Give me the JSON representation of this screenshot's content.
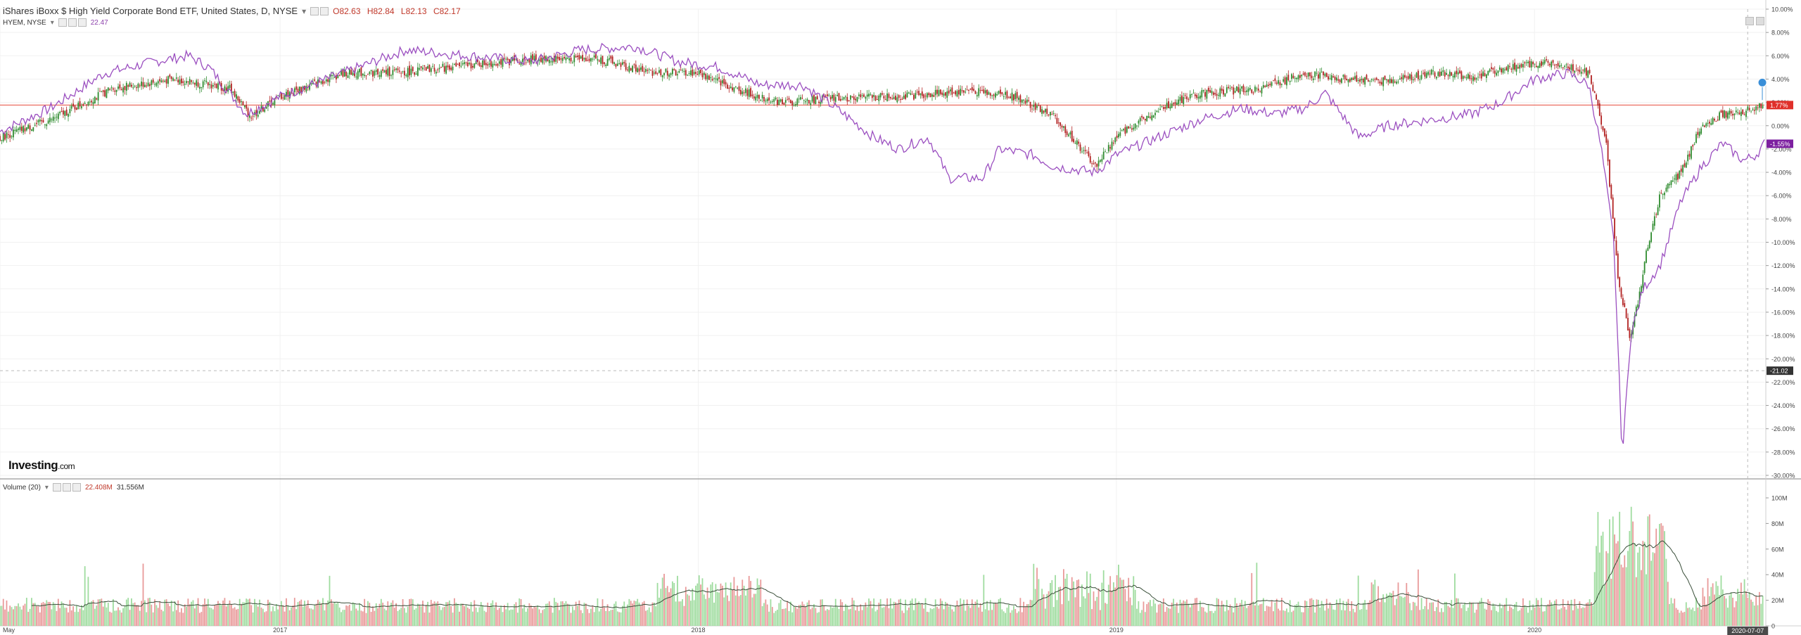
{
  "header": {
    "title": "iShares iBoxx $ High Yield Corporate Bond ETF, United States, D, NYSE",
    "open": "O82.63",
    "high": "H82.84",
    "low": "L82.13",
    "close": "C82.17"
  },
  "compare": {
    "label": "HYEM, NYSE",
    "value": "22.47"
  },
  "volume_legend": {
    "label": "Volume (20)",
    "value1": "22.408M",
    "value2": "31.556M"
  },
  "logo": {
    "main": "Investing",
    "suffix": ".com"
  },
  "colors": {
    "up": "#2e8b2e",
    "down": "#b22222",
    "compare_line": "#9b4fc0",
    "ref_line": "#e74c3c",
    "vol_up": "#9fdc9f",
    "vol_down": "#e99a9a",
    "vol_ma": "#3a4f3a"
  },
  "chart_data": {
    "type": "candlestick-comparison",
    "y_axis": {
      "unit": "%",
      "range": [
        -30,
        10
      ],
      "ticks": [
        "10.00%",
        "8.00%",
        "6.00%",
        "4.00%",
        "2.00%",
        "0.00%",
        "-2.00%",
        "-4.00%",
        "-6.00%",
        "-8.00%",
        "-10.00%",
        "-12.00%",
        "-14.00%",
        "-16.00%",
        "-18.00%",
        "-20.00%",
        "-22.00%",
        "-24.00%",
        "-26.00%",
        "-28.00%",
        "-30.00%"
      ]
    },
    "x_axis": {
      "labels": [
        "May",
        "2017",
        "2018",
        "2019",
        "2020"
      ],
      "label_times": [
        2016.33,
        2017.0,
        2018.0,
        2019.0,
        2020.0
      ],
      "range": [
        2016.33,
        2020.55
      ],
      "crosshair_label": "2020-07-07",
      "crosshair_time": 2020.51
    },
    "price_badges": {
      "hyg_last": "1.77%",
      "hyem_last": "-1.55%",
      "crosshair_value": "-21.02"
    },
    "hyg_anchors": [
      [
        2016.33,
        -1.0
      ],
      [
        2016.45,
        0.5
      ],
      [
        2016.6,
        3.2
      ],
      [
        2016.75,
        4.0
      ],
      [
        2016.88,
        3.2
      ],
      [
        2016.93,
        0.8
      ],
      [
        2017.0,
        2.5
      ],
      [
        2017.15,
        4.5
      ],
      [
        2017.3,
        4.6
      ],
      [
        2017.45,
        5.2
      ],
      [
        2017.6,
        5.7
      ],
      [
        2017.75,
        5.8
      ],
      [
        2017.88,
        4.6
      ],
      [
        2018.0,
        4.5
      ],
      [
        2018.1,
        3.0
      ],
      [
        2018.2,
        2.0
      ],
      [
        2018.35,
        2.4
      ],
      [
        2018.5,
        2.5
      ],
      [
        2018.65,
        3.0
      ],
      [
        2018.75,
        2.6
      ],
      [
        2018.85,
        0.8
      ],
      [
        2018.95,
        -3.5
      ],
      [
        2019.0,
        -1.0
      ],
      [
        2019.1,
        1.5
      ],
      [
        2019.2,
        2.8
      ],
      [
        2019.35,
        3.2
      ],
      [
        2019.45,
        4.5
      ],
      [
        2019.55,
        4.0
      ],
      [
        2019.65,
        3.8
      ],
      [
        2019.75,
        4.5
      ],
      [
        2019.85,
        4.2
      ],
      [
        2019.95,
        5.0
      ],
      [
        2020.05,
        5.5
      ],
      [
        2020.13,
        4.5
      ],
      [
        2020.17,
        -1.0
      ],
      [
        2020.2,
        -13.0
      ],
      [
        2020.23,
        -18.5
      ],
      [
        2020.27,
        -10.5
      ],
      [
        2020.3,
        -6.0
      ],
      [
        2020.35,
        -4.0
      ],
      [
        2020.4,
        0.0
      ],
      [
        2020.45,
        1.0
      ],
      [
        2020.5,
        1.2
      ],
      [
        2020.53,
        1.5
      ],
      [
        2020.55,
        1.77
      ]
    ],
    "hyem_anchors": [
      [
        2016.33,
        -0.5
      ],
      [
        2016.45,
        1.5
      ],
      [
        2016.58,
        4.5
      ],
      [
        2016.7,
        5.5
      ],
      [
        2016.78,
        6.0
      ],
      [
        2016.83,
        5.0
      ],
      [
        2016.92,
        1.0
      ],
      [
        2017.0,
        2.5
      ],
      [
        2017.15,
        4.5
      ],
      [
        2017.3,
        6.5
      ],
      [
        2017.45,
        6.0
      ],
      [
        2017.6,
        5.5
      ],
      [
        2017.72,
        6.5
      ],
      [
        2017.85,
        6.8
      ],
      [
        2017.95,
        5.5
      ],
      [
        2018.05,
        5.0
      ],
      [
        2018.15,
        3.5
      ],
      [
        2018.25,
        3.5
      ],
      [
        2018.33,
        1.5
      ],
      [
        2018.42,
        -1.0
      ],
      [
        2018.48,
        -2.0
      ],
      [
        2018.55,
        -1.0
      ],
      [
        2018.6,
        -4.5
      ],
      [
        2018.68,
        -4.5
      ],
      [
        2018.72,
        -2.0
      ],
      [
        2018.8,
        -2.5
      ],
      [
        2018.85,
        -3.5
      ],
      [
        2018.95,
        -4.0
      ],
      [
        2019.0,
        -2.5
      ],
      [
        2019.1,
        -1.0
      ],
      [
        2019.2,
        0.5
      ],
      [
        2019.3,
        1.5
      ],
      [
        2019.38,
        1.0
      ],
      [
        2019.45,
        1.5
      ],
      [
        2019.5,
        2.8
      ],
      [
        2019.58,
        -1.0
      ],
      [
        2019.65,
        0.0
      ],
      [
        2019.75,
        0.5
      ],
      [
        2019.85,
        1.0
      ],
      [
        2019.92,
        2.0
      ],
      [
        2020.0,
        4.0
      ],
      [
        2020.08,
        4.5
      ],
      [
        2020.13,
        3.5
      ],
      [
        2020.16,
        -2.0
      ],
      [
        2020.19,
        -10.0
      ],
      [
        2020.21,
        -28.5
      ],
      [
        2020.23,
        -18.0
      ],
      [
        2020.26,
        -14.0
      ],
      [
        2020.3,
        -12.0
      ],
      [
        2020.35,
        -6.5
      ],
      [
        2020.4,
        -3.5
      ],
      [
        2020.45,
        -1.5
      ],
      [
        2020.5,
        -3.0
      ],
      [
        2020.53,
        -2.5
      ],
      [
        2020.55,
        -1.55
      ]
    ],
    "volume_axis": {
      "ticks": [
        "100M",
        "80M",
        "60M",
        "40M",
        "20M",
        "0"
      ],
      "range": [
        0,
        100
      ]
    },
    "volume_note": "volume bars in millions; spikes near 2018.1 (~45M), 2018.9 (~60M), 2020.2 (~100M)"
  }
}
